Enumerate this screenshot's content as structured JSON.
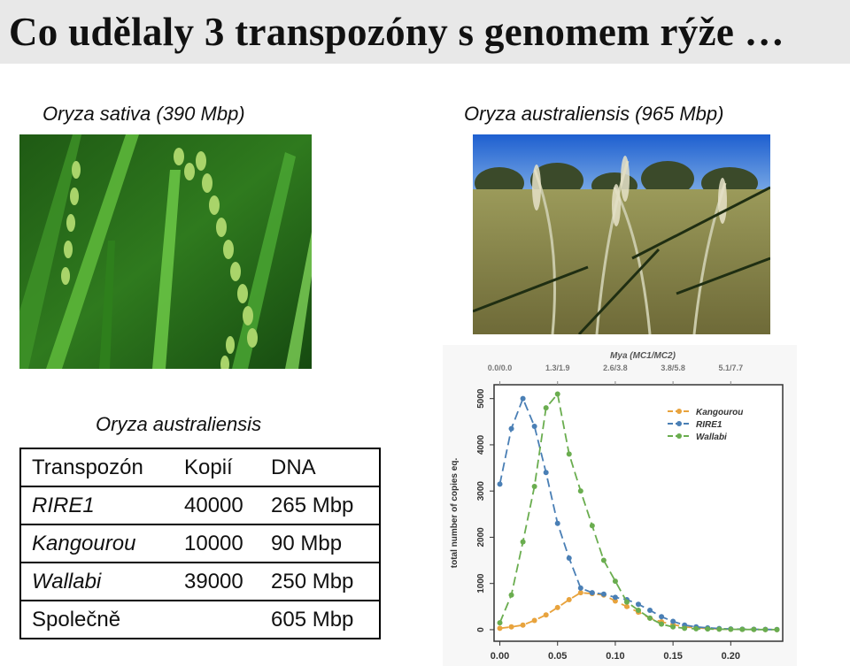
{
  "slide": {
    "title": "Co udělaly 3 transpozóny s genomem rýže …",
    "left_caption": "Oryza sativa (390 Mbp)",
    "right_caption": "Oryza australiensis (965 Mbp)",
    "table_caption": "Oryza australiensis"
  },
  "table": {
    "headers": [
      "Transpozón",
      "Kopií",
      "DNA"
    ],
    "rows": [
      [
        "RIRE1",
        "40000",
        "265 Mbp"
      ],
      [
        "Kangourou",
        "10000",
        "90 Mbp"
      ],
      [
        "Wallabi",
        "39000",
        "250 Mbp"
      ],
      [
        "Společně",
        "",
        "605 Mbp"
      ]
    ]
  },
  "chart_data": {
    "type": "line",
    "title": "Mya (MC1/MC2)",
    "top_ticks": [
      "0.0/0.0",
      "1.3/1.9",
      "2.6/3.8",
      "3.8/5.8",
      "5.1/7.7"
    ],
    "ylabel": "total number of copies eq.",
    "xlabel": "",
    "x_ticks": [
      "0.00",
      "0.05",
      "0.10",
      "0.15",
      "0.20"
    ],
    "y_ticks": [
      "0",
      "1000",
      "2000",
      "3000",
      "4000",
      "5000"
    ],
    "xlim": [
      -0.005,
      0.245
    ],
    "ylim": [
      -250,
      5300
    ],
    "grid": false,
    "legend_position": "top-right",
    "x": [
      0.0,
      0.01,
      0.02,
      0.03,
      0.04,
      0.05,
      0.06,
      0.07,
      0.08,
      0.09,
      0.1,
      0.11,
      0.12,
      0.13,
      0.14,
      0.15,
      0.16,
      0.17,
      0.18,
      0.19,
      0.2,
      0.21,
      0.22,
      0.23,
      0.24
    ],
    "series": [
      {
        "name": "Kangourou",
        "color": "#e8a33d",
        "values": [
          30,
          60,
          100,
          200,
          320,
          480,
          650,
          800,
          780,
          750,
          620,
          500,
          380,
          250,
          170,
          110,
          60,
          40,
          25,
          15,
          10,
          8,
          5,
          3,
          2
        ]
      },
      {
        "name": "RIRE1",
        "color": "#4a7fb5",
        "values": [
          3150,
          4350,
          5000,
          4400,
          3400,
          2300,
          1550,
          900,
          800,
          770,
          700,
          650,
          550,
          420,
          280,
          180,
          100,
          60,
          40,
          25,
          15,
          10,
          8,
          5,
          3
        ]
      },
      {
        "name": "Wallabi",
        "color": "#6aad4f",
        "values": [
          150,
          750,
          1900,
          3100,
          4800,
          5100,
          3800,
          3000,
          2250,
          1500,
          1050,
          600,
          420,
          250,
          120,
          60,
          30,
          20,
          15,
          10,
          8,
          5,
          3,
          2,
          1
        ]
      }
    ]
  }
}
